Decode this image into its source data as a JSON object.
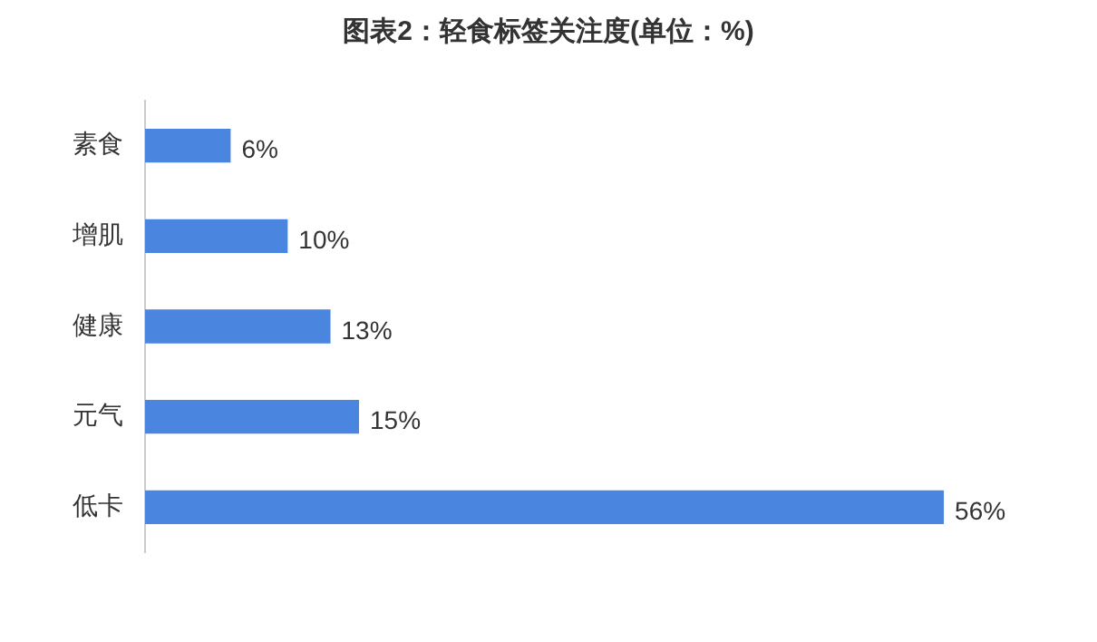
{
  "chart_data": {
    "type": "bar",
    "orientation": "horizontal",
    "title": "图表2：轻食标签关注度(单位：%)",
    "categories": [
      "素食",
      "增肌",
      "健康",
      "元气",
      "低卡"
    ],
    "values": [
      6,
      10,
      13,
      15,
      56
    ],
    "value_labels": [
      "6%",
      "10%",
      "13%",
      "15%",
      "56%"
    ],
    "color": "#4a86e0",
    "grid": false,
    "legend": false,
    "tick_labels": "y"
  }
}
